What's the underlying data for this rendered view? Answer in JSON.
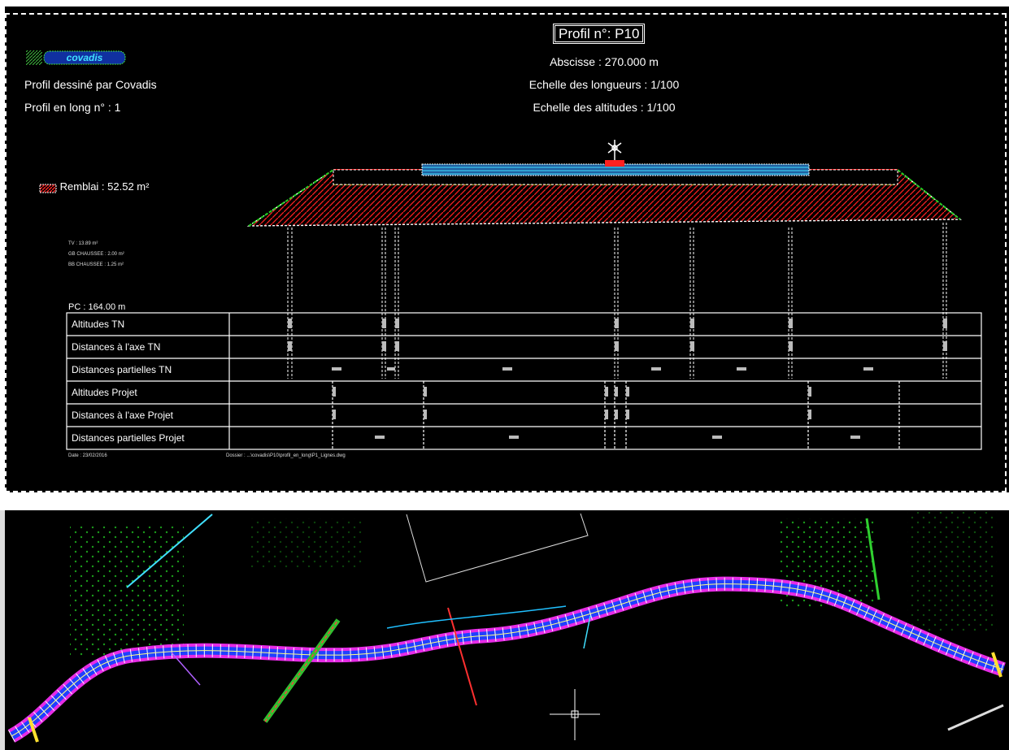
{
  "sheet": {
    "logo_text": "covadis",
    "drawn_by": "Profil dessiné par Covadis",
    "long_profile": "Profil en long n° : 1",
    "profile_title": "Profil n°: P10",
    "abscissa": "Abscisse : 270.000 m",
    "scale_lengths": "Echelle des longueurs : 1/100",
    "scale_altitudes": "Echelle des altitudes : 1/100",
    "fill_legend": "Remblai : 52.52 m²",
    "tiny_tv": "TV : 13.89 m²",
    "tiny_gb": "GB CHAUSSEE : 2.00 m²",
    "tiny_bb": "BB CHAUSSEE : 1.25 m²",
    "plane_ref": "PC : 164.00 m",
    "date": "Date : 23/02/2016",
    "file_path": "Dossier : ...\\covadis\\P10\\profil_en_long\\P1_Lignes.dwg"
  },
  "table_rows": [
    "Altitudes TN",
    "Distances à l'axe TN",
    "Distances partielles TN",
    "Altitudes Projet",
    "Distances à l'axe Projet",
    "Distances partielles Projet"
  ],
  "colors": {
    "fill_hatch": "#ff2020",
    "border_green": "#20d020",
    "border_yellow": "#f0e020",
    "pavement_cyan": "#20c0ff",
    "alignment_magenta": "#ff30ff",
    "points_green": "#20c020"
  },
  "icons": [
    "axis-marker-icon",
    "crosshair-cursor-icon",
    "hatch-swatch-icon"
  ]
}
